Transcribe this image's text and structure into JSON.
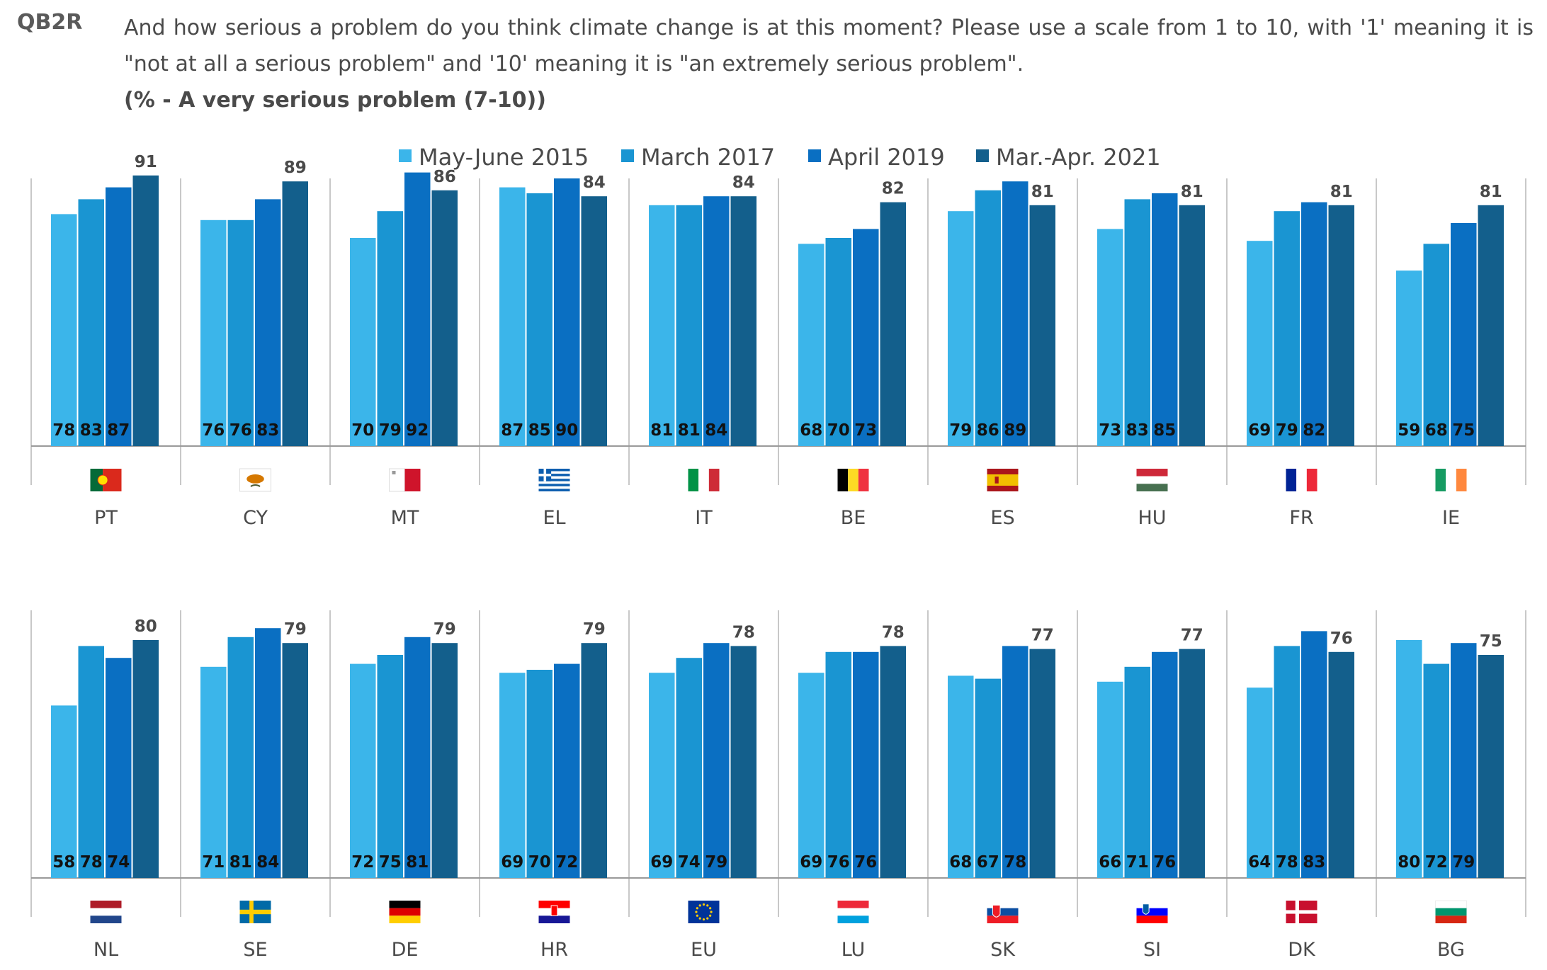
{
  "header": {
    "question_id": "QB2R",
    "question_text": "And how serious a problem do you think climate change is at this moment? Please use a scale from 1 to 10, with '1' meaning it is \"not at all a serious problem\" and '10' meaning it is \"an extremely serious problem\".",
    "subtitle": "(% - A very serious problem (7-10))"
  },
  "colors": {
    "May-June 2015": "#3bb5ea",
    "March 2017": "#1a95d2",
    "April 2019": "#0a6fc2",
    "Mar.-Apr. 2021": "#135f8c"
  },
  "chart_data": {
    "type": "bar",
    "ylim": [
      0,
      100
    ],
    "grid": false,
    "legend_position": "top-center",
    "series": [
      {
        "name": "May-June 2015"
      },
      {
        "name": "March 2017"
      },
      {
        "name": "April 2019"
      },
      {
        "name": "Mar.-Apr. 2021"
      }
    ],
    "panels": [
      {
        "countries": [
          {
            "code": "PT",
            "values": [
              78,
              83,
              87,
              91
            ],
            "flag": "portugal-flag-icon"
          },
          {
            "code": "CY",
            "values": [
              76,
              76,
              83,
              89
            ],
            "flag": "cyprus-flag-icon"
          },
          {
            "code": "MT",
            "values": [
              70,
              79,
              92,
              86
            ],
            "flag": "malta-flag-icon"
          },
          {
            "code": "EL",
            "values": [
              87,
              85,
              90,
              84
            ],
            "flag": "greece-flag-icon"
          },
          {
            "code": "IT",
            "values": [
              81,
              81,
              84,
              84
            ],
            "flag": "italy-flag-icon"
          },
          {
            "code": "BE",
            "values": [
              68,
              70,
              73,
              82
            ],
            "flag": "belgium-flag-icon"
          },
          {
            "code": "ES",
            "values": [
              79,
              86,
              89,
              81
            ],
            "flag": "spain-flag-icon"
          },
          {
            "code": "HU",
            "values": [
              73,
              83,
              85,
              81
            ],
            "flag": "hungary-flag-icon"
          },
          {
            "code": "FR",
            "values": [
              69,
              79,
              82,
              81
            ],
            "flag": "france-flag-icon"
          },
          {
            "code": "IE",
            "values": [
              59,
              68,
              75,
              81
            ],
            "flag": "ireland-flag-icon"
          }
        ]
      },
      {
        "countries": [
          {
            "code": "NL",
            "values": [
              58,
              78,
              74,
              80
            ],
            "flag": "netherlands-flag-icon"
          },
          {
            "code": "SE",
            "values": [
              71,
              81,
              84,
              79
            ],
            "flag": "sweden-flag-icon"
          },
          {
            "code": "DE",
            "values": [
              72,
              75,
              81,
              79
            ],
            "flag": "germany-flag-icon"
          },
          {
            "code": "HR",
            "values": [
              69,
              70,
              72,
              79
            ],
            "flag": "croatia-flag-icon"
          },
          {
            "code": "EU",
            "values": [
              69,
              74,
              79,
              78
            ],
            "flag": "eu-flag-icon"
          },
          {
            "code": "LU",
            "values": [
              69,
              76,
              76,
              78
            ],
            "flag": "luxembourg-flag-icon"
          },
          {
            "code": "SK",
            "values": [
              68,
              67,
              78,
              77
            ],
            "flag": "slovakia-flag-icon"
          },
          {
            "code": "SI",
            "values": [
              66,
              71,
              76,
              77
            ],
            "flag": "slovenia-flag-icon"
          },
          {
            "code": "DK",
            "values": [
              64,
              78,
              83,
              76
            ],
            "flag": "denmark-flag-icon"
          },
          {
            "code": "BG",
            "values": [
              80,
              72,
              79,
              75
            ],
            "flag": "bulgaria-flag-icon"
          }
        ]
      }
    ]
  }
}
